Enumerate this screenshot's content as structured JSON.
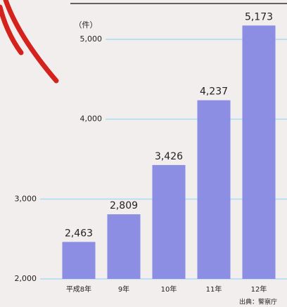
{
  "chart_data": {
    "type": "bar",
    "unit_label": "（件）",
    "categories": [
      "平成8年",
      "9年",
      "10年",
      "11年",
      "12年"
    ],
    "values": [
      2463,
      2809,
      3426,
      4237,
      5173
    ],
    "value_labels": [
      "2,463",
      "2,809",
      "3,426",
      "4,237",
      "5,173"
    ],
    "color": "#8c8ee4",
    "ylim": [
      2000,
      5400
    ],
    "yticks": [
      {
        "value": 2000,
        "label": "2,000"
      },
      {
        "value": 3000,
        "label": "3,000"
      },
      {
        "value": 4000,
        "label": "4,000"
      },
      {
        "value": 5000,
        "label": "5,000"
      }
    ],
    "grid": true,
    "source": "出典：警察庁"
  }
}
